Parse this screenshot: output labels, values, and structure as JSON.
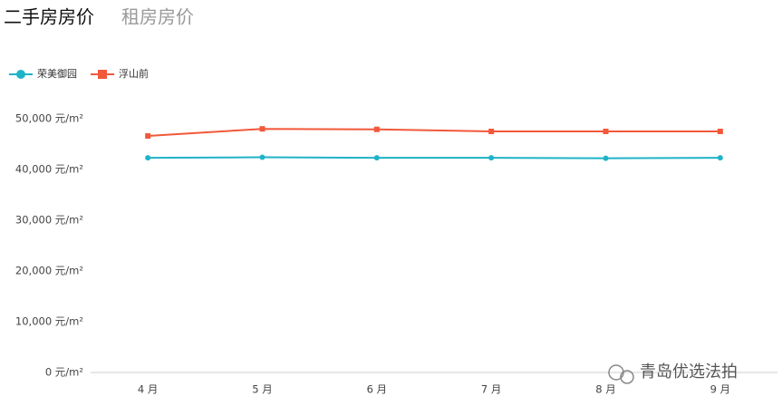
{
  "tabs": [
    "二手房房价",
    "租房房价"
  ],
  "watermark": "青岛优选法拍",
  "chart_data": {
    "type": "line",
    "categories": [
      "4 月",
      "5 月",
      "6 月",
      "7 月",
      "8 月",
      "9 月"
    ],
    "series": [
      {
        "name": "荣美御园",
        "color": "#1fb3c8",
        "marker": "circle",
        "values": [
          42300,
          42400,
          42300,
          42300,
          42200,
          42300
        ]
      },
      {
        "name": "浮山前",
        "color": "#f2583a",
        "marker": "square",
        "values": [
          46600,
          48000,
          47900,
          47500,
          47500,
          47500
        ]
      }
    ],
    "ylim": [
      0,
      50000
    ],
    "yticks": [
      {
        "value": 0,
        "label": "0 元/m²"
      },
      {
        "value": 10000,
        "label": "10,000 元/m²"
      },
      {
        "value": 20000,
        "label": "20,000 元/m²"
      },
      {
        "value": 30000,
        "label": "30,000 元/m²"
      },
      {
        "value": 40000,
        "label": "40,000 元/m²"
      },
      {
        "value": 50000,
        "label": "50,000 元/m²"
      }
    ],
    "grid": false
  }
}
